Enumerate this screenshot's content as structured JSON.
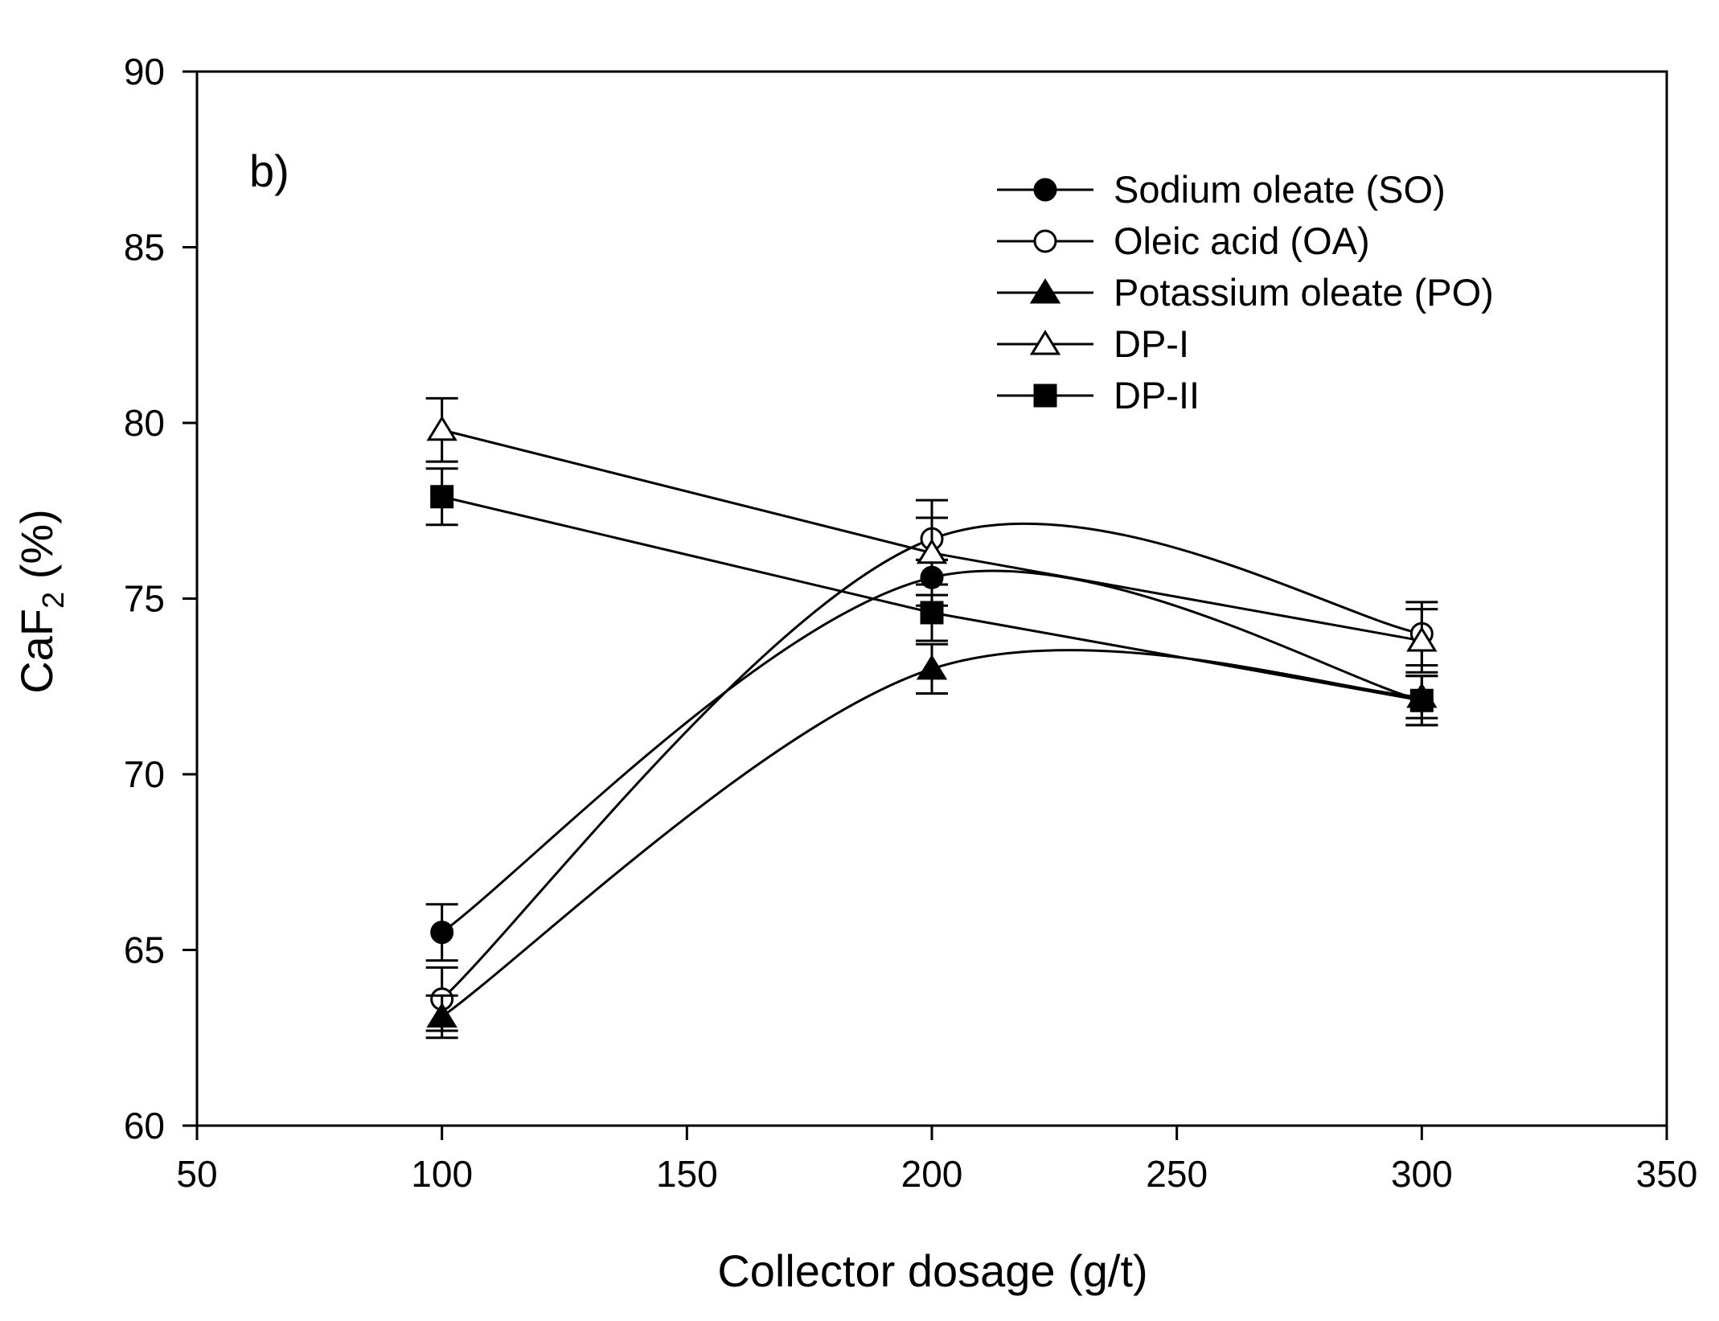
{
  "chart_data": {
    "type": "line",
    "panel_label": "b)",
    "xlabel": "Collector dosage (g/t)",
    "ylabel": {
      "main": "CaF",
      "subscript": "2",
      "suffix": " (%)"
    },
    "xlim": [
      50,
      350
    ],
    "ylim": [
      60,
      90
    ],
    "xticks": [
      "50",
      "100",
      "150",
      "200",
      "250",
      "300",
      "350"
    ],
    "yticks": [
      "60",
      "65",
      "70",
      "75",
      "80",
      "85",
      "90"
    ],
    "x": [
      100,
      200,
      300
    ],
    "legend_position": "top-right",
    "series": [
      {
        "name": "Sodium oleate (SO)",
        "marker": "circle-filled",
        "values": [
          65.5,
          75.6,
          72.1
        ],
        "errors": [
          0.8,
          0.5,
          0.7
        ]
      },
      {
        "name": "Oleic acid (OA)",
        "marker": "circle-open",
        "values": [
          63.6,
          76.7,
          74.0
        ],
        "errors": [
          0.9,
          0.6,
          0.9
        ]
      },
      {
        "name": "Potassium oleate (PO)",
        "marker": "triangle-filled",
        "values": [
          63.1,
          73.0,
          72.2
        ],
        "errors": [
          0.6,
          0.7,
          0.6
        ]
      },
      {
        "name": "DP-I",
        "marker": "triangle-open",
        "values": [
          79.8,
          76.3,
          73.8
        ],
        "errors": [
          0.9,
          1.5,
          0.9
        ]
      },
      {
        "name": "DP-II",
        "marker": "square-filled",
        "values": [
          77.9,
          74.6,
          72.1
        ],
        "errors": [
          0.8,
          0.8,
          0.7
        ]
      }
    ],
    "colors": {
      "line": "#000000",
      "background": "#ffffff"
    }
  }
}
